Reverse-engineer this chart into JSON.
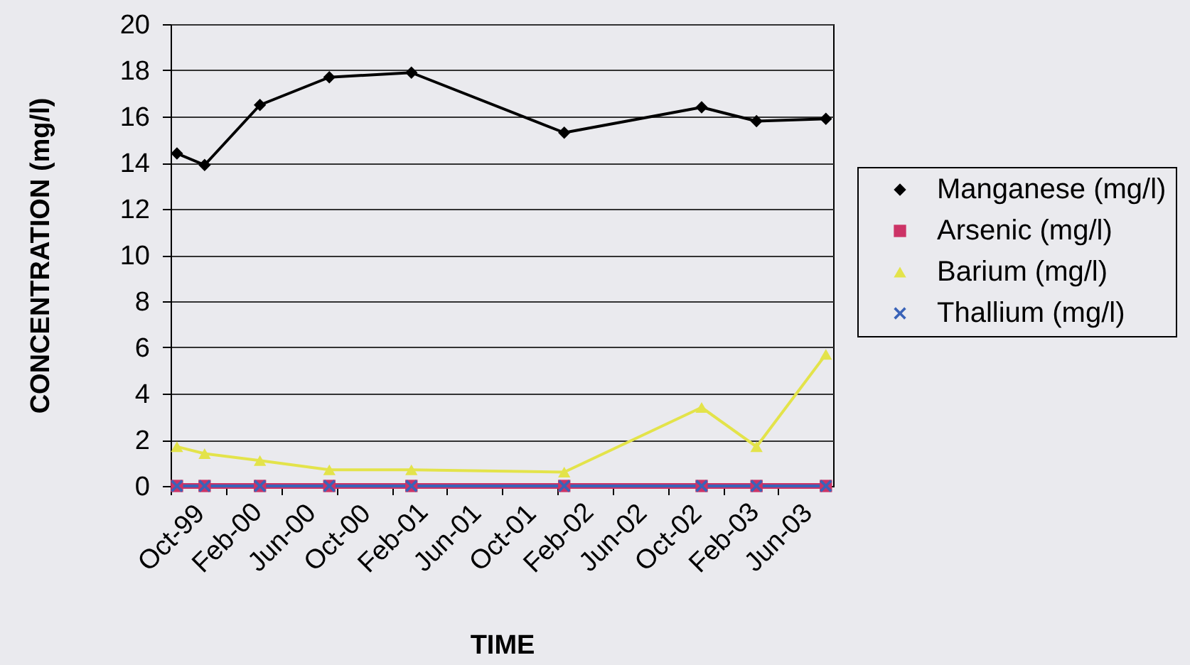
{
  "chart_data": {
    "type": "line",
    "xlabel": "TIME",
    "ylabel": "CONCENTRATION (mg/l)",
    "x": [
      "1999-10-15",
      "1999-12-15",
      "2000-04-15",
      "2000-09-15",
      "2001-03-15",
      "2002-02-15",
      "2002-12-15",
      "2003-04-15",
      "2003-09-15"
    ],
    "series": [
      {
        "name": "Manganese (mg/l)",
        "color": "#000000",
        "marker": "diamond",
        "values": [
          14.4,
          13.9,
          16.5,
          17.7,
          17.9,
          15.3,
          16.4,
          15.8,
          15.9
        ]
      },
      {
        "name": "Arsenic (mg/l)",
        "color": "#cc3366",
        "marker": "square",
        "values": [
          0,
          0,
          0,
          0,
          0,
          0,
          0,
          0,
          0
        ]
      },
      {
        "name": "Barium (mg/l)",
        "color": "#e3e34a",
        "marker": "triangle",
        "values": [
          1.7,
          1.4,
          1.1,
          0.7,
          0.7,
          0.6,
          3.4,
          1.7,
          5.7
        ]
      },
      {
        "name": "Thallium (mg/l)",
        "color": "#3a63b8",
        "marker": "cross",
        "values": [
          0,
          0,
          0,
          0,
          0,
          0,
          0,
          0,
          0
        ]
      }
    ],
    "xlim": [
      "1999-10",
      "2003-10"
    ],
    "xticks": [
      {
        "value": "1999-10",
        "label": "Oct-99"
      },
      {
        "value": "2000-02",
        "label": "Feb-00"
      },
      {
        "value": "2000-06",
        "label": "Jun-00"
      },
      {
        "value": "2000-10",
        "label": "Oct-00"
      },
      {
        "value": "2001-02",
        "label": "Feb-01"
      },
      {
        "value": "2001-06",
        "label": "Jun-01"
      },
      {
        "value": "2001-10",
        "label": "Oct-01"
      },
      {
        "value": "2002-02",
        "label": "Feb-02"
      },
      {
        "value": "2002-06",
        "label": "Jun-02"
      },
      {
        "value": "2002-10",
        "label": "Oct-02"
      },
      {
        "value": "2003-02",
        "label": "Feb-03"
      },
      {
        "value": "2003-06",
        "label": "Jun-03"
      }
    ],
    "ylim": [
      0,
      20
    ],
    "yticks": [
      0,
      2,
      4,
      6,
      8,
      10,
      12,
      14,
      16,
      18,
      20
    ],
    "grid": "y",
    "legend": "right",
    "line_style": "solid"
  }
}
